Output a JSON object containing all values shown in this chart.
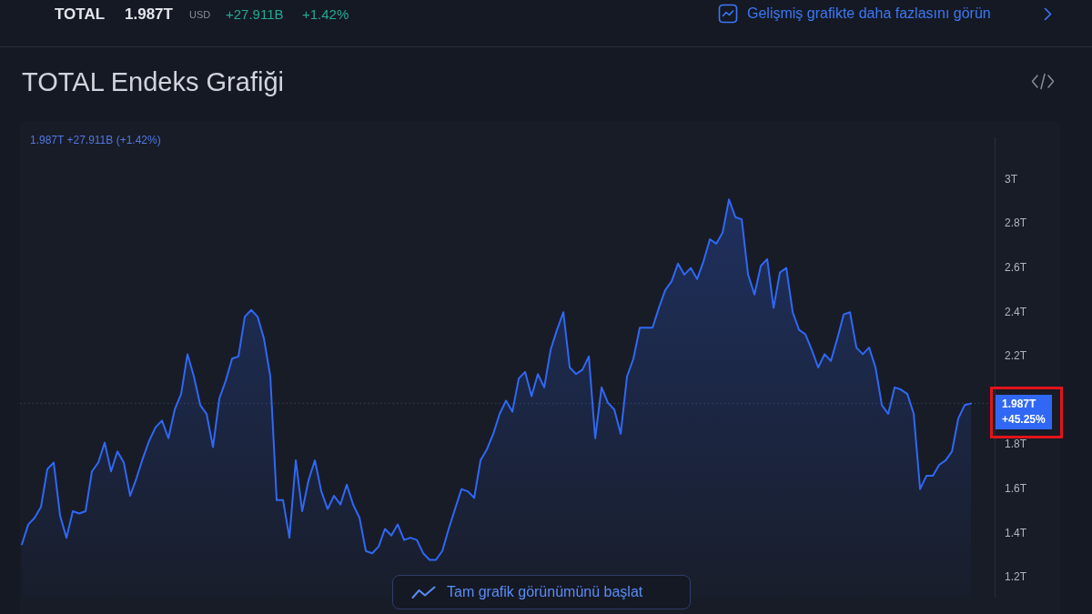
{
  "chart_data": {
    "type": "area",
    "title": "TOTAL Endeks Grafiği",
    "annotations": [
      "TOTAL",
      "1.987T",
      "USD",
      "+27.911B",
      "+1.42%",
      "Gelişmiş grafikte daha fazlasını görün",
      "1.987T +27.911B (+1.42%)",
      "Tam grafik görünümünü başlat"
    ],
    "categories": [
      null,
      null,
      null,
      null,
      null,
      null,
      null,
      null,
      null,
      null,
      null,
      null,
      null,
      null,
      null,
      null,
      null,
      null,
      null,
      null,
      null,
      null,
      null,
      null,
      null,
      null,
      null,
      null,
      null,
      null,
      null,
      null,
      null,
      null,
      null,
      null,
      null,
      null,
      null,
      null,
      null,
      null,
      null,
      null,
      null,
      null,
      null,
      null,
      null,
      null,
      null,
      null,
      null,
      null,
      null,
      null,
      null,
      null,
      null,
      null,
      null,
      null,
      null,
      null,
      null,
      null,
      null,
      null,
      null,
      null,
      null,
      null,
      null,
      null,
      null,
      null,
      null,
      null,
      null,
      null,
      null,
      null,
      null,
      null,
      null,
      null,
      null,
      null,
      null,
      null,
      null,
      null,
      null,
      null,
      null,
      null,
      null,
      null,
      null,
      null,
      null,
      null,
      null,
      null,
      null,
      null,
      null,
      null,
      null,
      null,
      null,
      null,
      null,
      null,
      null,
      null,
      null,
      null,
      null,
      null,
      null,
      null,
      null,
      null,
      null,
      null,
      null,
      null,
      null,
      null,
      null,
      null,
      null,
      null,
      null,
      null,
      null,
      null,
      null,
      null,
      null,
      null,
      null,
      null,
      null,
      null,
      null,
      null,
      null,
      null
    ],
    "values": [
      1.35,
      1.44,
      1.47,
      1.52,
      1.69,
      1.72,
      1.48,
      1.38,
      1.5,
      1.49,
      1.5,
      1.68,
      1.72,
      1.81,
      1.68,
      1.77,
      1.72,
      1.57,
      1.65,
      1.74,
      1.82,
      1.88,
      1.91,
      1.83,
      1.96,
      2.03,
      2.21,
      2.11,
      1.98,
      1.94,
      1.79,
      2.01,
      2.09,
      2.19,
      2.2,
      2.38,
      2.41,
      2.38,
      2.28,
      2.11,
      1.55,
      1.55,
      1.38,
      1.73,
      1.5,
      1.64,
      1.73,
      1.59,
      1.51,
      1.57,
      1.53,
      1.62,
      1.53,
      1.47,
      1.32,
      1.31,
      1.34,
      1.42,
      1.39,
      1.44,
      1.37,
      1.38,
      1.37,
      1.31,
      1.28,
      1.28,
      1.32,
      1.42,
      1.51,
      1.6,
      1.59,
      1.56,
      1.73,
      1.78,
      1.85,
      1.94,
      2.0,
      1.95,
      2.1,
      2.13,
      2.02,
      2.12,
      2.06,
      2.23,
      2.32,
      2.4,
      2.15,
      2.12,
      2.14,
      2.2,
      1.83,
      2.06,
      1.99,
      1.96,
      1.85,
      2.11,
      2.19,
      2.33,
      2.33,
      2.33,
      2.42,
      2.5,
      2.54,
      2.62,
      2.57,
      2.6,
      2.55,
      2.63,
      2.73,
      2.71,
      2.76,
      2.91,
      2.83,
      2.82,
      2.57,
      2.48,
      2.61,
      2.64,
      2.42,
      2.58,
      2.6,
      2.4,
      2.32,
      2.3,
      2.23,
      2.15,
      2.21,
      2.18,
      2.28,
      2.39,
      2.4,
      2.24,
      2.21,
      2.24,
      2.15,
      1.98,
      1.94,
      2.06,
      2.05,
      2.03,
      1.94,
      1.6,
      1.66,
      1.66,
      1.71,
      1.73,
      1.77,
      1.92,
      1.98,
      1.987
    ],
    "color": "#3068f5",
    "ylim": [
      1.11,
      3.19
    ],
    "yticks": [
      {
        "value": 1.2,
        "label": "1.2T"
      },
      {
        "value": 1.4,
        "label": "1.4T"
      },
      {
        "value": 1.6,
        "label": "1.6T"
      },
      {
        "value": 1.8,
        "label": "1.8T"
      },
      {
        "value": 2.2,
        "label": "2.2T"
      },
      {
        "value": 2.4,
        "label": "2.4T"
      },
      {
        "value": 2.6,
        "label": "2.6T"
      },
      {
        "value": 2.8,
        "label": "2.8T"
      },
      {
        "value": 3,
        "label": "3T"
      }
    ],
    "ref_lines": [
      {
        "axis": "y",
        "value": 1.987,
        "label": "1.987T +45.25%",
        "line_style": "dotted"
      }
    ],
    "tick_labels": "y",
    "marker": "none"
  }
}
